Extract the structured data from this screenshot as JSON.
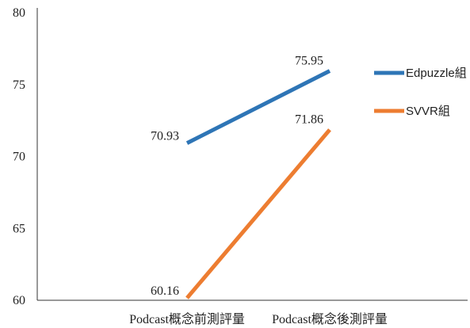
{
  "chart_data": {
    "type": "line",
    "title": "",
    "xlabel": "",
    "ylabel": "",
    "categories": [
      "Podcast概念前測評量",
      "Podcast概念後測評量"
    ],
    "ylim": [
      60,
      80
    ],
    "yticks": [
      60,
      65,
      70,
      75,
      80
    ],
    "grid": false,
    "legend_position": "right",
    "series": [
      {
        "name": "Edpuzzle組",
        "values": [
          70.93,
          75.95
        ],
        "labels": [
          "70.93",
          "75.95"
        ],
        "color": "#2e75b6"
      },
      {
        "name": "SVVR組",
        "values": [
          60.16,
          71.86
        ],
        "labels": [
          "60.16",
          "71.86"
        ],
        "color": "#ed7d31"
      }
    ]
  }
}
